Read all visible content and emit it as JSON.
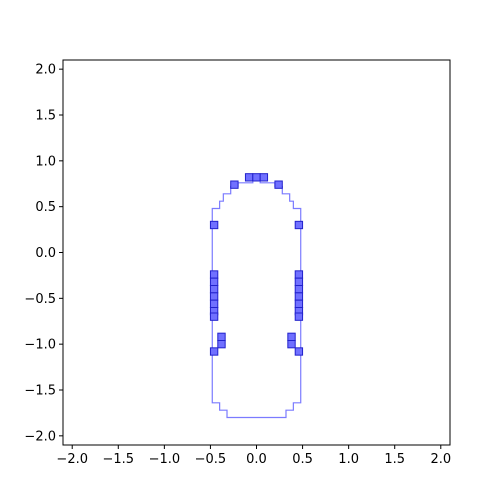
{
  "chart_data": {
    "type": "scatter",
    "title": "",
    "xlabel": "",
    "ylabel": "",
    "xlim": [
      -2.1,
      2.1
    ],
    "ylim": [
      -2.1,
      2.1
    ],
    "grid": false,
    "legend": null,
    "x_ticks": [
      -2.0,
      -1.5,
      -1.0,
      -0.5,
      0.0,
      0.5,
      1.0,
      1.5,
      2.0
    ],
    "y_ticks": [
      -2.0,
      -1.5,
      -1.0,
      -0.5,
      0.0,
      0.5,
      1.0,
      1.5,
      2.0
    ],
    "x_tick_labels": [
      "−2.0",
      "−1.5",
      "−1.0",
      "−0.5",
      "0.0",
      "0.5",
      "1.0",
      "1.5",
      "2.0"
    ],
    "y_tick_labels": [
      "−2.0",
      "−1.5",
      "−1.0",
      "−0.5",
      "0.0",
      "0.5",
      "1.0",
      "1.5",
      "2.0"
    ],
    "outline": {
      "color": "#7b7bff",
      "points": [
        [
          -0.04,
          0.8
        ],
        [
          0.04,
          0.8
        ],
        [
          0.04,
          0.76
        ],
        [
          0.2,
          0.76
        ],
        [
          0.2,
          0.72
        ],
        [
          0.28,
          0.72
        ],
        [
          0.28,
          0.64
        ],
        [
          0.36,
          0.64
        ],
        [
          0.36,
          0.56
        ],
        [
          0.4,
          0.56
        ],
        [
          0.4,
          0.48
        ],
        [
          0.48,
          0.48
        ],
        [
          0.48,
          -1.64
        ],
        [
          0.4,
          -1.64
        ],
        [
          0.4,
          -1.72
        ],
        [
          0.32,
          -1.72
        ],
        [
          0.32,
          -1.8
        ],
        [
          -0.32,
          -1.8
        ],
        [
          -0.32,
          -1.72
        ],
        [
          -0.4,
          -1.72
        ],
        [
          -0.4,
          -1.64
        ],
        [
          -0.48,
          -1.64
        ],
        [
          -0.48,
          0.48
        ],
        [
          -0.4,
          0.48
        ],
        [
          -0.4,
          0.56
        ],
        [
          -0.36,
          0.56
        ],
        [
          -0.36,
          0.64
        ],
        [
          -0.28,
          0.64
        ],
        [
          -0.28,
          0.72
        ],
        [
          -0.2,
          0.72
        ],
        [
          -0.2,
          0.76
        ],
        [
          -0.04,
          0.76
        ],
        [
          -0.04,
          0.8
        ]
      ]
    },
    "cells": {
      "color": "#7070ff",
      "edge_color": "#2222cc",
      "size": 0.08,
      "points": [
        [
          -0.08,
          0.82
        ],
        [
          0.0,
          0.82
        ],
        [
          0.08,
          0.82
        ],
        [
          -0.24,
          0.74
        ],
        [
          0.24,
          0.74
        ],
        [
          -0.46,
          0.3
        ],
        [
          0.46,
          0.3
        ],
        [
          -0.46,
          -0.24
        ],
        [
          -0.46,
          -0.32
        ],
        [
          -0.46,
          -0.4
        ],
        [
          -0.46,
          -0.48
        ],
        [
          -0.46,
          -0.56
        ],
        [
          -0.46,
          -0.64
        ],
        [
          -0.46,
          -0.7
        ],
        [
          0.46,
          -0.24
        ],
        [
          0.46,
          -0.32
        ],
        [
          0.46,
          -0.4
        ],
        [
          0.46,
          -0.48
        ],
        [
          0.46,
          -0.56
        ],
        [
          0.46,
          -0.64
        ],
        [
          0.46,
          -0.7
        ],
        [
          -0.38,
          -0.92
        ],
        [
          -0.38,
          -1.0
        ],
        [
          0.38,
          -0.92
        ],
        [
          0.38,
          -1.0
        ],
        [
          -0.46,
          -1.08
        ],
        [
          0.46,
          -1.08
        ]
      ]
    }
  }
}
